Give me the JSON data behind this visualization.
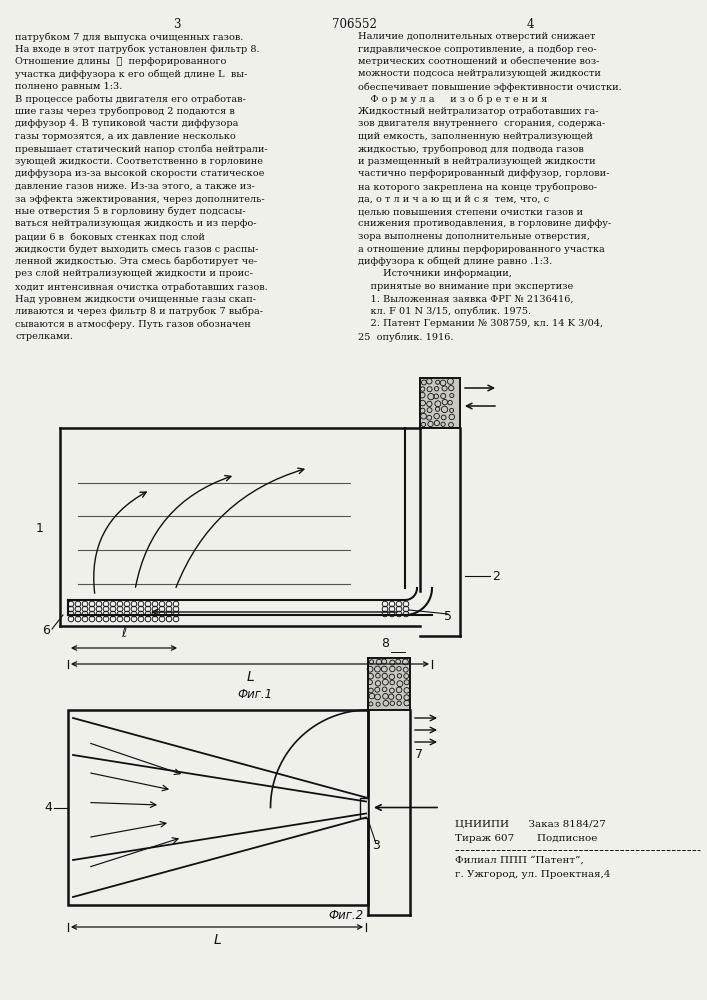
{
  "bg_color": "#f0f0eb",
  "text_color": "#111111",
  "line_color": "#111111",
  "page_num_left": "3",
  "page_num_center": "706552",
  "page_num_right": "4",
  "left_col_lines": [
    "патрубком 7 для выпуска очищенных газов.",
    "На входе в этот патрубок установлен фильтр 8.",
    "Отношение длины  ℓ  перфорированного",
    "участка диффузора к его общей длине L  вы-",
    "полнено равным 1:3.",
    "В процессе работы двигателя его отработав-",
    "шие газы через трубопровод 2 подаются в",
    "диффузор 4. В тупиковой части диффузора",
    "газы тормозятся, а их давление несколько",
    "превышает статический напор столба нейтрали-",
    "зующей жидкости. Соответственно в горловине",
    "диффузора из-за высокой скорости статическое",
    "давление газов ниже. Из-за этого, а также из-",
    "за эффекта эжектирования, через дополнитель-",
    "ные отверстия 5 в горловину будет подсасы-",
    "ваться нейтрализующая жидкость и из перфо-",
    "рации 6 в  боковых стенках под слой",
    "жидкости будет выходить смесь газов с распы-",
    "ленной жидкостью. Эта смесь барботирует че-",
    "рез слой нейтрализующей жидкости и проис-",
    "ходит интенсивная очистка отработавших газов.",
    "Над уровнем жидкости очищенные газы скап-",
    "ливаются и через фильтр 8 и патрубок 7 выбра-",
    "сываются в атмосферу. Путь газов обозначен",
    "стрелками."
  ],
  "right_col_lines": [
    "Наличие дополнительных отверстий снижает",
    "гидравлическое сопротивление, а подбор гео-",
    "метрических соотношений и обеспечение воз-",
    "можности подсоса нейтрализующей жидкости",
    "обеспечивает повышение эффективности очистки.",
    "    Ф о р м у л а     и з о б р е т е н и я",
    "Жидкостный нейтрализатор отработавших га-",
    "зов двигателя внутреннего  сгорания, содержа-",
    "щий емкость, заполненную нейтрализующей",
    "жидкостью, трубопровод для подвода газов",
    "и размещенный в нейтрализующей жидкости",
    "частично перфорированный диффузор, горлови-",
    "на которого закреплена на конце трубопрово-",
    "да, о т л и ч а ю щ и й с я  тем, что, с",
    "целью повышения степени очистки газов и",
    "снижения противодавления, в горловине диффу-",
    "зора выполнены дополнительные отверстия,",
    "а отношение длины перфорированного участка",
    "диффузора к общей длине равно .1:3.",
    "        Источники информации,",
    "    принятые во внимание при экспертизе",
    "    1. Выложенная заявка ФРГ № 2136416,",
    "    кл. F 01 N 3/15, опублик. 1975.",
    "    2. Патент Германии № 308759, кл. 14 K 3/04,",
    "25  опублик. 1916."
  ],
  "cniipis_line1": "ЦНИИПИ      Заказ 8184/27",
  "cniipis_line2": "Тираж 607       Подписное",
  "filial_line1": "Филиал ППП “Патент”,",
  "filial_line2": "г. Ужгород, ул. Проектная,4",
  "fig1_label": "Фиг.1",
  "fig2_label": "Фиг.2"
}
